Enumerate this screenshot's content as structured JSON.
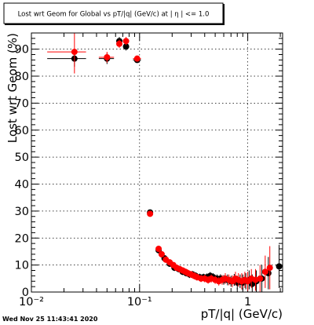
{
  "chart_data": {
    "type": "scatter",
    "title": "Lost wrt Geom for Global vs pT/|q| (GeV/c) at | η | <= 1.0",
    "xlabel": "pT/|q| (GeV/c)",
    "ylabel": "Lost wrt Geom (%)",
    "x_scale": "log",
    "xlim": [
      0.01,
      2.1
    ],
    "ylim": [
      0,
      96
    ],
    "x_major_ticks": [
      0.01,
      0.1,
      1
    ],
    "x_major_tick_labels": [
      "10⁻²",
      "10⁻¹",
      "1"
    ],
    "y_ticks": [
      0,
      10,
      20,
      30,
      40,
      50,
      60,
      70,
      80,
      90
    ],
    "y_tick_labels": [
      "0",
      "10",
      "20",
      "30",
      "40",
      "50",
      "60",
      "70",
      "80",
      "90"
    ],
    "grid": true,
    "timestamp": "Wed Nov 25 11:43:41 2020",
    "colors": {
      "series_black": "#000000",
      "series_red": "#ff0000"
    },
    "series": [
      {
        "values": [
          {
            "x": 0.025,
            "y": 86.5,
            "xerr": [
              0.011,
              0.007
            ],
            "yerr": 3
          },
          {
            "x": 0.05,
            "y": 86.5,
            "xerr": [
              0.008,
              0.008
            ],
            "yerr": 2
          },
          {
            "x": 0.065,
            "y": 93,
            "xerr": [
              0.004,
              0.004
            ],
            "yerr": 1.5
          },
          {
            "x": 0.075,
            "y": 91,
            "xerr": [
              0.004,
              0.004
            ],
            "yerr": 1.5
          },
          {
            "x": 0.095,
            "y": 86,
            "xerr": [
              0.008,
              0.008
            ],
            "yerr": 1
          },
          {
            "x": 0.125,
            "y": 29.5,
            "xerr": [
              0.006,
              0.006
            ],
            "yerr": 1
          },
          {
            "x": 0.15,
            "y": 15.5,
            "xerr": [
              0.005,
              0.005
            ],
            "yerr": 1.2
          },
          {
            "x": 0.17,
            "y": 12.5,
            "xerr": [
              0.005,
              0.005
            ],
            "yerr": 1.2
          },
          {
            "x": 0.19,
            "y": 10.5,
            "xerr": [
              0.005,
              0.005
            ],
            "yerr": 1.2
          },
          {
            "x": 0.21,
            "y": 9,
            "xerr": [
              0.005,
              0.005
            ],
            "yerr": 1.2
          },
          {
            "x": 0.23,
            "y": 8.5,
            "xerr": [
              0.005,
              0.005
            ],
            "yerr": 1.2
          },
          {
            "x": 0.25,
            "y": 7.5,
            "xerr": [
              0.005,
              0.005
            ],
            "yerr": 1.2
          },
          {
            "x": 0.27,
            "y": 7,
            "xerr": [
              0.005,
              0.005
            ],
            "yerr": 1.2
          },
          {
            "x": 0.29,
            "y": 6.5,
            "xerr": [
              0.005,
              0.005
            ],
            "yerr": 1.3
          },
          {
            "x": 0.31,
            "y": 6.5,
            "xerr": [
              0.005,
              0.005
            ],
            "yerr": 1.3
          },
          {
            "x": 0.33,
            "y": 6,
            "xerr": [
              0.005,
              0.005
            ],
            "yerr": 1.3
          },
          {
            "x": 0.36,
            "y": 5.5,
            "xerr": [
              0.008,
              0.008
            ],
            "yerr": 1.3
          },
          {
            "x": 0.39,
            "y": 5.5,
            "xerr": [
              0.008,
              0.008
            ],
            "yerr": 1.3
          },
          {
            "x": 0.42,
            "y": 5.5,
            "xerr": [
              0.008,
              0.008
            ],
            "yerr": 1.4
          },
          {
            "x": 0.45,
            "y": 6,
            "xerr": [
              0.008,
              0.008
            ],
            "yerr": 1.4
          },
          {
            "x": 0.48,
            "y": 5.5,
            "xerr": [
              0.008,
              0.008
            ],
            "yerr": 1.5
          },
          {
            "x": 0.52,
            "y": 5,
            "xerr": [
              0.01,
              0.01
            ],
            "yerr": 1.5
          },
          {
            "x": 0.56,
            "y": 5,
            "xerr": [
              0.01,
              0.01
            ],
            "yerr": 1.6
          },
          {
            "x": 0.6,
            "y": 4.5,
            "xerr": [
              0.01,
              0.01
            ],
            "yerr": 1.8
          },
          {
            "x": 0.65,
            "y": 4.5,
            "xerr": [
              0.012,
              0.012
            ],
            "yerr": 2
          },
          {
            "x": 0.7,
            "y": 4,
            "xerr": [
              0.012,
              0.012
            ],
            "yerr": 2
          },
          {
            "x": 0.75,
            "y": 4.5,
            "xerr": [
              0.012,
              0.012
            ],
            "yerr": 2.2
          },
          {
            "x": 0.8,
            "y": 3.5,
            "xerr": [
              0.012,
              0.012
            ],
            "yerr": 2.5
          },
          {
            "x": 0.85,
            "y": 4,
            "xerr": [
              0.012,
              0.012
            ],
            "yerr": 2.5
          },
          {
            "x": 0.9,
            "y": 3.5,
            "xerr": [
              0.012,
              0.012
            ],
            "yerr": 3
          },
          {
            "x": 0.96,
            "y": 4,
            "xerr": [
              0.015,
              0.015
            ],
            "yerr": 3
          },
          {
            "x": 1.03,
            "y": 4.5,
            "xerr": [
              0.015,
              0.015
            ],
            "yerr": 3.5
          },
          {
            "x": 1.1,
            "y": 3,
            "xerr": [
              0.015,
              0.015
            ],
            "yerr": 3.5
          },
          {
            "x": 1.2,
            "y": 4,
            "xerr": [
              0.02,
              0.02
            ],
            "yerr": 4
          },
          {
            "x": 1.35,
            "y": 5,
            "xerr": [
              0.03,
              0.03
            ],
            "yerr": 5
          },
          {
            "x": 1.55,
            "y": 7,
            "xerr": [
              0.03,
              0.03
            ],
            "yerr": 6
          },
          {
            "x": 1.95,
            "y": 9.5,
            "xerr": [
              0.05,
              0.05
            ],
            "yerr": 8
          }
        ]
      },
      {
        "values": [
          {
            "x": 0.025,
            "y": 89,
            "xerr": [
              0.011,
              0.007
            ],
            "yerr": 8
          },
          {
            "x": 0.05,
            "y": 87,
            "xerr": [
              0.008,
              0.008
            ],
            "yerr": 2
          },
          {
            "x": 0.065,
            "y": 92,
            "xerr": [
              0.004,
              0.004
            ],
            "yerr": 1.5
          },
          {
            "x": 0.075,
            "y": 93,
            "xerr": [
              0.004,
              0.004
            ],
            "yerr": 1.5
          },
          {
            "x": 0.095,
            "y": 86.5,
            "xerr": [
              0.008,
              0.008
            ],
            "yerr": 1
          },
          {
            "x": 0.125,
            "y": 29,
            "xerr": [
              0.006,
              0.006
            ],
            "yerr": 1
          },
          {
            "x": 0.15,
            "y": 16,
            "xerr": [
              0.005,
              0.005
            ],
            "yerr": 1.2
          },
          {
            "x": 0.16,
            "y": 14,
            "xerr": [
              0.005,
              0.005
            ],
            "yerr": 1.2
          },
          {
            "x": 0.175,
            "y": 12,
            "xerr": [
              0.005,
              0.005
            ],
            "yerr": 1.2
          },
          {
            "x": 0.19,
            "y": 11,
            "xerr": [
              0.005,
              0.005
            ],
            "yerr": 1.2
          },
          {
            "x": 0.205,
            "y": 10,
            "xerr": [
              0.005,
              0.005
            ],
            "yerr": 1.2
          },
          {
            "x": 0.22,
            "y": 9,
            "xerr": [
              0.005,
              0.005
            ],
            "yerr": 1.2
          },
          {
            "x": 0.235,
            "y": 8.5,
            "xerr": [
              0.005,
              0.005
            ],
            "yerr": 1.2
          },
          {
            "x": 0.25,
            "y": 8,
            "xerr": [
              0.005,
              0.005
            ],
            "yerr": 1.2
          },
          {
            "x": 0.265,
            "y": 7.5,
            "xerr": [
              0.005,
              0.005
            ],
            "yerr": 1.2
          },
          {
            "x": 0.28,
            "y": 7,
            "xerr": [
              0.005,
              0.005
            ],
            "yerr": 1.3
          },
          {
            "x": 0.3,
            "y": 6.5,
            "xerr": [
              0.005,
              0.005
            ],
            "yerr": 1.3
          },
          {
            "x": 0.32,
            "y": 6,
            "xerr": [
              0.005,
              0.005
            ],
            "yerr": 1.3
          },
          {
            "x": 0.34,
            "y": 5.5,
            "xerr": [
              0.005,
              0.005
            ],
            "yerr": 1.3
          },
          {
            "x": 0.37,
            "y": 5,
            "xerr": [
              0.008,
              0.008
            ],
            "yerr": 1.3
          },
          {
            "x": 0.4,
            "y": 5,
            "xerr": [
              0.008,
              0.008
            ],
            "yerr": 1.4
          },
          {
            "x": 0.43,
            "y": 4.5,
            "xerr": [
              0.008,
              0.008
            ],
            "yerr": 1.4
          },
          {
            "x": 0.46,
            "y": 5,
            "xerr": [
              0.008,
              0.008
            ],
            "yerr": 1.5
          },
          {
            "x": 0.5,
            "y": 4.5,
            "xerr": [
              0.01,
              0.01
            ],
            "yerr": 1.5
          },
          {
            "x": 0.54,
            "y": 4,
            "xerr": [
              0.01,
              0.01
            ],
            "yerr": 1.6
          },
          {
            "x": 0.58,
            "y": 4.5,
            "xerr": [
              0.01,
              0.01
            ],
            "yerr": 1.8
          },
          {
            "x": 0.62,
            "y": 5,
            "xerr": [
              0.012,
              0.012
            ],
            "yerr": 2
          },
          {
            "x": 0.67,
            "y": 4.5,
            "xerr": [
              0.012,
              0.012
            ],
            "yerr": 2
          },
          {
            "x": 0.72,
            "y": 4,
            "xerr": [
              0.012,
              0.012
            ],
            "yerr": 2.2
          },
          {
            "x": 0.77,
            "y": 5,
            "xerr": [
              0.012,
              0.012
            ],
            "yerr": 2.5
          },
          {
            "x": 0.82,
            "y": 4.5,
            "xerr": [
              0.012,
              0.012
            ],
            "yerr": 2.5
          },
          {
            "x": 0.88,
            "y": 4,
            "xerr": [
              0.012,
              0.012
            ],
            "yerr": 3
          },
          {
            "x": 0.94,
            "y": 4.5,
            "xerr": [
              0.015,
              0.015
            ],
            "yerr": 3
          },
          {
            "x": 1.0,
            "y": 4,
            "xerr": [
              0.015,
              0.015
            ],
            "yerr": 3.5
          },
          {
            "x": 1.08,
            "y": 5,
            "xerr": [
              0.015,
              0.015
            ],
            "yerr": 3.5
          },
          {
            "x": 1.18,
            "y": 4.5,
            "xerr": [
              0.02,
              0.02
            ],
            "yerr": 4
          },
          {
            "x": 1.3,
            "y": 5,
            "xerr": [
              0.03,
              0.03
            ],
            "yerr": 5
          },
          {
            "x": 1.45,
            "y": 7.5,
            "xerr": [
              0.03,
              0.03
            ],
            "yerr": 6
          },
          {
            "x": 1.6,
            "y": 9,
            "xerr": [
              0.05,
              0.05
            ],
            "yerr": 8
          }
        ]
      }
    ]
  }
}
